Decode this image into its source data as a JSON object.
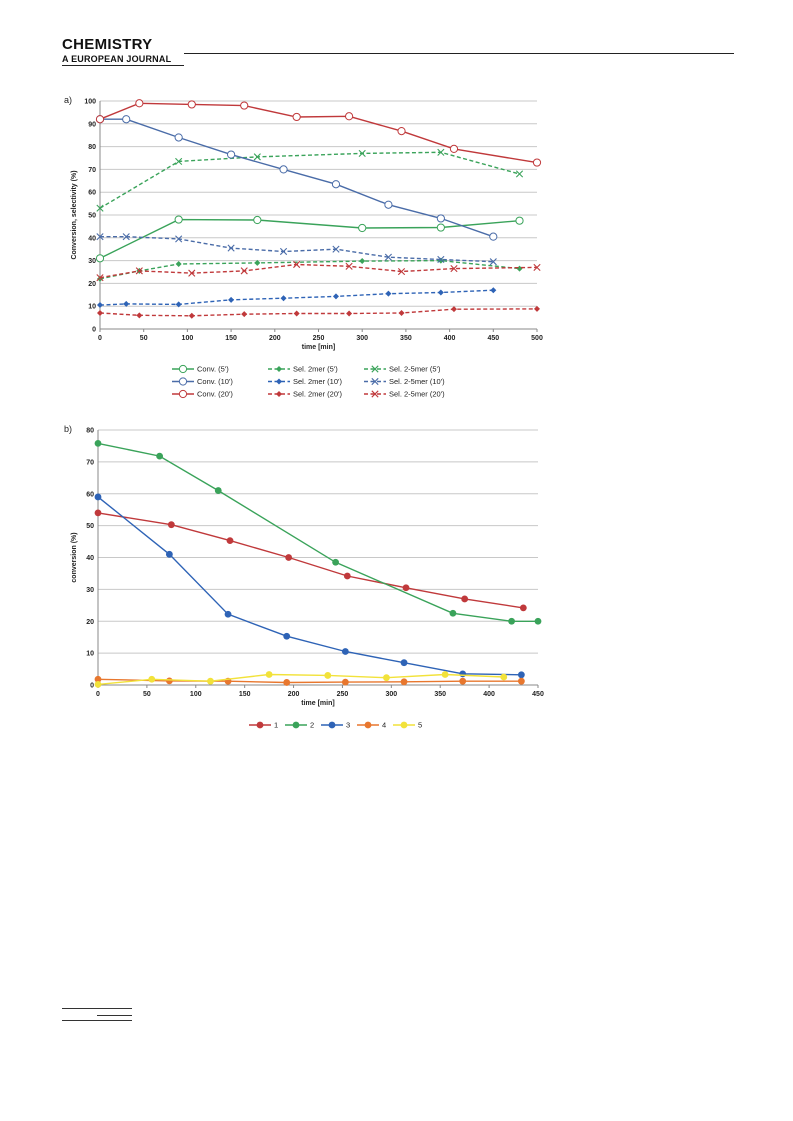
{
  "header": {
    "journal_name": "CHEMISTRY",
    "journal_subtitle": "A EUROPEAN JOURNAL"
  },
  "chart_data": [
    {
      "panel_label": "a)",
      "type": "line",
      "xlabel": "time [min]",
      "ylabel": "Conversion, selectivity (%)",
      "xlim": [
        0,
        500
      ],
      "ylim": [
        0,
        100
      ],
      "xticks": [
        0,
        50,
        100,
        150,
        200,
        250,
        300,
        350,
        400,
        450,
        500
      ],
      "yticks": [
        0,
        10,
        20,
        30,
        40,
        50,
        60,
        70,
        80,
        90,
        100
      ],
      "grid": "horizontal",
      "legend_position": "bottom",
      "series": [
        {
          "name": "Conv. (5')",
          "color": "#3aa35a",
          "dash": "solid",
          "marker": "circle-open",
          "points": [
            [
              0,
              31
            ],
            [
              90,
              48
            ],
            [
              180,
              47.8
            ],
            [
              300,
              44.3
            ],
            [
              390,
              44.5
            ],
            [
              480,
              47.5
            ]
          ]
        },
        {
          "name": "Sel. 2mer (5')",
          "color": "#3aa35a",
          "dash": "dashed",
          "marker": "diamond",
          "points": [
            [
              0,
              22
            ],
            [
              45,
              25.5
            ],
            [
              90,
              28.5
            ],
            [
              180,
              29
            ],
            [
              300,
              29.8
            ],
            [
              390,
              30
            ],
            [
              480,
              26.5
            ]
          ]
        },
        {
          "name": "Sel. 2-5mer (5')",
          "color": "#3aa35a",
          "dash": "dashed",
          "marker": "cross",
          "points": [
            [
              0,
              53
            ],
            [
              90,
              73.5
            ],
            [
              180,
              75.5
            ],
            [
              300,
              77
            ],
            [
              390,
              77.5
            ],
            [
              480,
              68
            ]
          ]
        },
        {
          "name": "Conv. (10')",
          "color": "#4a6ca8",
          "dash": "solid",
          "marker": "circle-open",
          "points": [
            [
              0,
              92
            ],
            [
              30,
              92
            ],
            [
              90,
              84
            ],
            [
              150,
              76.5
            ],
            [
              210,
              70
            ],
            [
              270,
              63.5
            ],
            [
              330,
              54.5
            ],
            [
              390,
              48.5
            ],
            [
              450,
              40.5
            ]
          ]
        },
        {
          "name": "Sel. 2mer (10')",
          "color": "#2e63b6",
          "dash": "dashed",
          "marker": "diamond",
          "points": [
            [
              0,
              10.5
            ],
            [
              30,
              11
            ],
            [
              90,
              10.8
            ],
            [
              150,
              12.8
            ],
            [
              210,
              13.5
            ],
            [
              270,
              14.3
            ],
            [
              330,
              15.5
            ],
            [
              390,
              16
            ],
            [
              450,
              17
            ]
          ]
        },
        {
          "name": "Sel. 2-5mer (10')",
          "color": "#4a6ca8",
          "dash": "dashed",
          "marker": "cross",
          "points": [
            [
              0,
              40.5
            ],
            [
              30,
              40.5
            ],
            [
              90,
              39.5
            ],
            [
              150,
              35.5
            ],
            [
              210,
              34
            ],
            [
              270,
              35
            ],
            [
              330,
              31.5
            ],
            [
              390,
              30.5
            ],
            [
              450,
              29.5
            ]
          ]
        },
        {
          "name": "Conv. (20')",
          "color": "#c0393b",
          "dash": "solid",
          "marker": "circle-open",
          "points": [
            [
              0,
              92
            ],
            [
              45,
              99
            ],
            [
              105,
              98.5
            ],
            [
              165,
              98
            ],
            [
              225,
              93
            ],
            [
              285,
              93.3
            ],
            [
              345,
              86.8
            ],
            [
              405,
              79
            ],
            [
              500,
              73
            ]
          ]
        },
        {
          "name": "Sel. 2mer (20')",
          "color": "#c0393b",
          "dash": "dashed",
          "marker": "diamond",
          "points": [
            [
              0,
              7
            ],
            [
              45,
              6
            ],
            [
              105,
              5.8
            ],
            [
              165,
              6.5
            ],
            [
              225,
              6.8
            ],
            [
              285,
              6.8
            ],
            [
              345,
              7
            ],
            [
              405,
              8.7
            ],
            [
              500,
              8.8
            ]
          ]
        },
        {
          "name": "Sel. 2-5mer (20')",
          "color": "#c0393b",
          "dash": "dashed",
          "marker": "cross",
          "points": [
            [
              0,
              22.5
            ],
            [
              45,
              25.5
            ],
            [
              105,
              24.5
            ],
            [
              165,
              25.5
            ],
            [
              225,
              28.3
            ],
            [
              285,
              27.5
            ],
            [
              345,
              25.2
            ],
            [
              405,
              26.5
            ],
            [
              500,
              27
            ]
          ]
        }
      ]
    },
    {
      "panel_label": "b)",
      "type": "line",
      "xlabel": "time [min]",
      "ylabel": "conversion (%)",
      "xlim": [
        0,
        450
      ],
      "ylim": [
        0,
        80
      ],
      "xticks": [
        0,
        50,
        100,
        150,
        200,
        250,
        300,
        350,
        400,
        450
      ],
      "yticks": [
        0,
        10,
        20,
        30,
        40,
        50,
        60,
        70,
        80
      ],
      "grid": "horizontal",
      "legend_position": "bottom",
      "series": [
        {
          "name": "1",
          "color": "#c0393b",
          "marker": "dot",
          "points": [
            [
              0,
              54
            ],
            [
              75,
              50.3
            ],
            [
              135,
              45.3
            ],
            [
              195,
              40
            ],
            [
              255,
              34.2
            ],
            [
              315,
              30.5
            ],
            [
              375,
              27
            ],
            [
              435,
              24.2
            ]
          ]
        },
        {
          "name": "2",
          "color": "#3aa35a",
          "marker": "dot",
          "points": [
            [
              0,
              75.8
            ],
            [
              63,
              71.8
            ],
            [
              123,
              61
            ],
            [
              243,
              38.5
            ],
            [
              363,
              22.5
            ],
            [
              423,
              20
            ],
            [
              450,
              20
            ]
          ]
        },
        {
          "name": "3",
          "color": "#2e63b6",
          "marker": "dot",
          "points": [
            [
              0,
              59
            ],
            [
              73,
              41
            ],
            [
              133,
              22.2
            ],
            [
              193,
              15.3
            ],
            [
              253,
              10.5
            ],
            [
              313,
              7
            ],
            [
              373,
              3.5
            ],
            [
              433,
              3.2
            ]
          ]
        },
        {
          "name": "4",
          "color": "#e8772e",
          "marker": "dot",
          "points": [
            [
              0,
              1.8
            ],
            [
              73,
              1.3
            ],
            [
              133,
              1.2
            ],
            [
              193,
              0.8
            ],
            [
              253,
              0.9
            ],
            [
              313,
              1
            ],
            [
              373,
              1.2
            ],
            [
              433,
              1.2
            ]
          ]
        },
        {
          "name": "5",
          "color": "#f2e23a",
          "marker": "dot",
          "points": [
            [
              0,
              0.2
            ],
            [
              55,
              1.8
            ],
            [
              115,
              1.2
            ],
            [
              175,
              3.3
            ],
            [
              235,
              3
            ],
            [
              295,
              2.3
            ],
            [
              355,
              3.3
            ],
            [
              415,
              2.5
            ]
          ]
        }
      ]
    }
  ]
}
